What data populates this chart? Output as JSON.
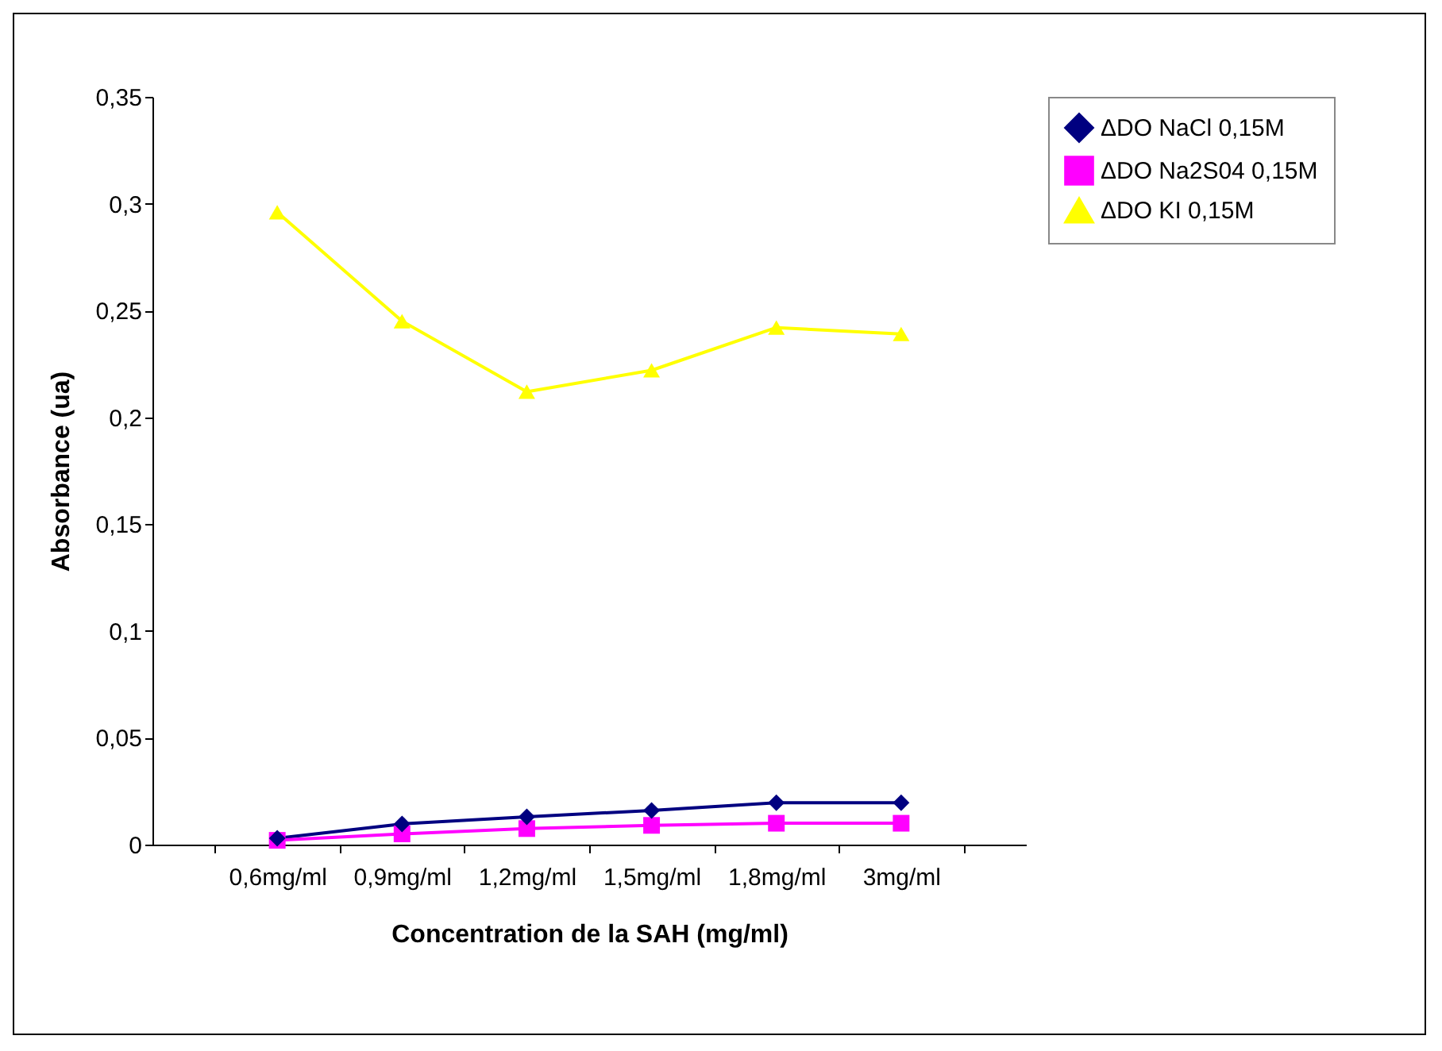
{
  "chart_data": {
    "type": "line",
    "xlabel": "Concentration de la SAH (mg/ml)",
    "ylabel": "Absorbance (ua)",
    "categories": [
      "0,6mg/ml",
      "0,9mg/ml",
      "1,2mg/ml",
      "1,5mg/ml",
      "1,8mg/ml",
      "3mg/ml"
    ],
    "series": [
      {
        "name": "ΔDO NaCl 0,15M",
        "color": "#000080",
        "marker": "diamond",
        "values": [
          0.003,
          0.0097,
          0.013,
          0.016,
          0.0196,
          0.0196
        ]
      },
      {
        "name": "ΔDO Na2S04 0,15M",
        "color": "#ff00ff",
        "marker": "square",
        "values": [
          0.002,
          0.005,
          0.0075,
          0.009,
          0.01,
          0.01
        ]
      },
      {
        "name": "ΔDO KI 0,15M",
        "color": "#ffff00",
        "marker": "triangle",
        "values": [
          0.296,
          0.245,
          0.212,
          0.222,
          0.242,
          0.239
        ]
      }
    ],
    "ylim": [
      0,
      0.35
    ],
    "yticks": [
      {
        "value": 0,
        "label": "0"
      },
      {
        "value": 0.05,
        "label": "0,05"
      },
      {
        "value": 0.1,
        "label": "0,1"
      },
      {
        "value": 0.15,
        "label": "0,15"
      },
      {
        "value": 0.2,
        "label": "0,2"
      },
      {
        "value": 0.25,
        "label": "0,25"
      },
      {
        "value": 0.3,
        "label": "0,3"
      },
      {
        "value": 0.35,
        "label": "0,35"
      }
    ],
    "grid": false,
    "legend": "right",
    "line_style": "solid"
  }
}
